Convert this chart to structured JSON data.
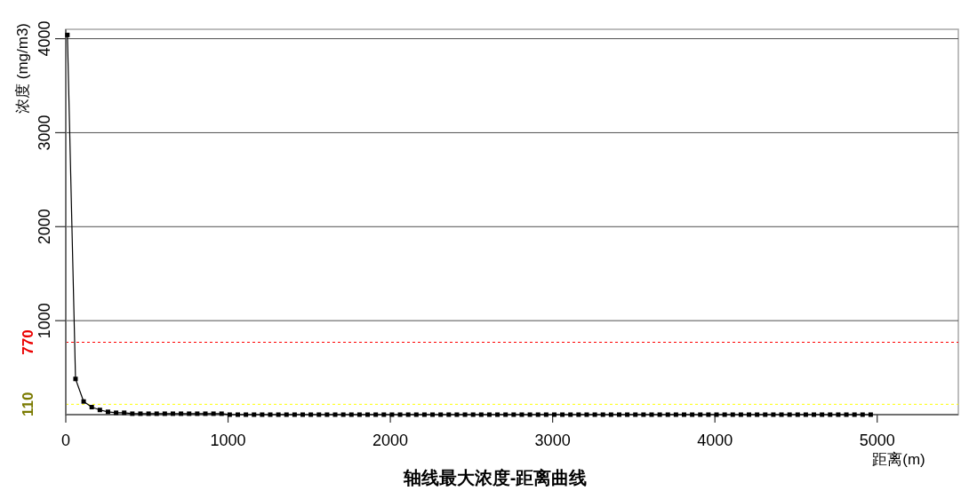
{
  "chart_data": {
    "type": "line",
    "title": "轴线最大浓度-距离曲线",
    "xlabel": "距离(m)",
    "ylabel": "浓度 (mg/m3)",
    "x": [
      10,
      60,
      110,
      160,
      210,
      260,
      310,
      360,
      410,
      460,
      510,
      560,
      610,
      660,
      710,
      760,
      810,
      860,
      910,
      960,
      1010,
      1060,
      1110,
      1160,
      1210,
      1260,
      1310,
      1360,
      1410,
      1460,
      1510,
      1560,
      1610,
      1660,
      1710,
      1760,
      1810,
      1860,
      1910,
      1960,
      2010,
      2060,
      2110,
      2160,
      2210,
      2260,
      2310,
      2360,
      2410,
      2460,
      2510,
      2560,
      2610,
      2660,
      2710,
      2760,
      2810,
      2860,
      2910,
      2960,
      3010,
      3060,
      3110,
      3160,
      3210,
      3260,
      3310,
      3360,
      3410,
      3460,
      3510,
      3560,
      3610,
      3660,
      3710,
      3760,
      3810,
      3860,
      3910,
      3960,
      4010,
      4060,
      4110,
      4160,
      4210,
      4260,
      4310,
      4360,
      4410,
      4460,
      4510,
      4560,
      4610,
      4660,
      4710,
      4760,
      4810,
      4860,
      4910,
      4960
    ],
    "series": [
      {
        "color": "#000000",
        "values": [
          4040,
          380,
          140,
          80,
          50,
          30,
          20,
          20,
          10,
          10,
          10,
          10,
          10,
          10,
          10,
          10,
          10,
          10,
          10,
          10,
          0,
          0,
          0,
          0,
          0,
          0,
          0,
          0,
          0,
          0,
          0,
          0,
          0,
          0,
          0,
          0,
          0,
          0,
          0,
          0,
          0,
          0,
          0,
          0,
          0,
          0,
          0,
          0,
          0,
          0,
          0,
          0,
          0,
          0,
          0,
          0,
          0,
          0,
          0,
          0,
          0,
          0,
          0,
          0,
          0,
          0,
          0,
          0,
          0,
          0,
          0,
          0,
          0,
          0,
          0,
          0,
          0,
          0,
          0,
          0,
          0,
          0,
          0,
          0,
          0,
          0,
          0,
          0,
          0,
          0,
          0,
          0,
          0,
          0,
          0,
          0,
          0,
          0,
          0,
          0
        ]
      }
    ],
    "xlim": [
      0,
      5500
    ],
    "ylim": [
      0,
      4100
    ],
    "xticks": [
      0,
      1000,
      2000,
      3000,
      4000,
      5000
    ],
    "yticks": [
      1000,
      2000,
      3000,
      4000
    ],
    "grid": "y",
    "marker": "square",
    "line_style": "solid",
    "ref_lines": [
      {
        "axis": "y",
        "value": 770,
        "label": "770",
        "color": "#ff0000",
        "line_style": "dashed"
      },
      {
        "axis": "y",
        "value": 110,
        "label": "110",
        "color": "#ffff00",
        "line_style": "dashed"
      }
    ]
  }
}
